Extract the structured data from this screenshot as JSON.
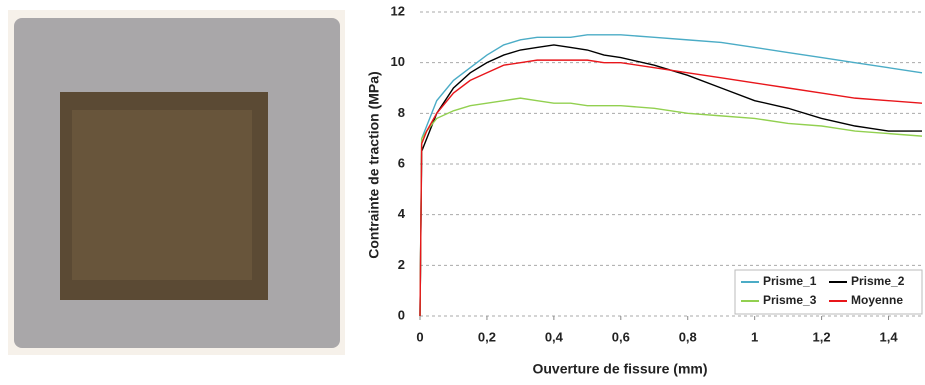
{
  "chart_data": {
    "type": "line",
    "x_label": "Ouverture de fissure (mm)",
    "y_label": "Contrainte de traction (MPa)",
    "x": [
      0,
      0.005,
      0.02,
      0.05,
      0.1,
      0.15,
      0.2,
      0.25,
      0.3,
      0.35,
      0.4,
      0.45,
      0.5,
      0.55,
      0.6,
      0.7,
      0.8,
      0.9,
      1.0,
      1.1,
      1.2,
      1.3,
      1.4,
      1.5
    ],
    "series": [
      {
        "name": "Prisme_1",
        "color": "#4bacc6",
        "values": [
          0,
          7,
          7.5,
          8.5,
          9.3,
          9.8,
          10.3,
          10.7,
          10.9,
          11,
          11,
          11,
          11.1,
          11.1,
          11.1,
          11,
          10.9,
          10.8,
          10.6,
          10.4,
          10.2,
          10,
          9.8,
          9.6
        ]
      },
      {
        "name": "Prisme_2",
        "color": "#000000",
        "values": [
          0,
          6.5,
          7,
          8,
          9,
          9.6,
          10,
          10.3,
          10.5,
          10.6,
          10.7,
          10.6,
          10.5,
          10.3,
          10.2,
          9.9,
          9.5,
          9,
          8.5,
          8.2,
          7.8,
          7.5,
          7.3,
          7.3
        ]
      },
      {
        "name": "Prisme_3",
        "color": "#92d050",
        "values": [
          0,
          7,
          7.3,
          7.8,
          8.1,
          8.3,
          8.4,
          8.5,
          8.6,
          8.5,
          8.4,
          8.4,
          8.3,
          8.3,
          8.3,
          8.2,
          8,
          7.9,
          7.8,
          7.6,
          7.5,
          7.3,
          7.2,
          7.1
        ]
      },
      {
        "name": "Moyenne",
        "color": "#e8161b",
        "values": [
          0,
          6.8,
          7.3,
          8,
          8.8,
          9.3,
          9.6,
          9.9,
          10,
          10.1,
          10.1,
          10.1,
          10.1,
          10,
          10,
          9.8,
          9.6,
          9.4,
          9.2,
          9,
          8.8,
          8.6,
          8.5,
          8.4
        ]
      }
    ],
    "xlim": [
      0,
      1.5
    ],
    "xticks": [
      0,
      {
        "value": 0.2,
        "label": "0,2"
      },
      {
        "value": 0.4,
        "label": "0,4"
      },
      {
        "value": 0.6,
        "label": "0,6"
      },
      {
        "value": 0.8,
        "label": "0,8"
      },
      1,
      {
        "value": 1.2,
        "label": "1,2"
      },
      {
        "value": 1.4,
        "label": "1,4"
      }
    ],
    "ylim": [
      0,
      12
    ],
    "yticks": [
      0,
      2,
      4,
      6,
      8,
      10,
      12
    ],
    "grid": true,
    "legend": "bottom-right"
  }
}
